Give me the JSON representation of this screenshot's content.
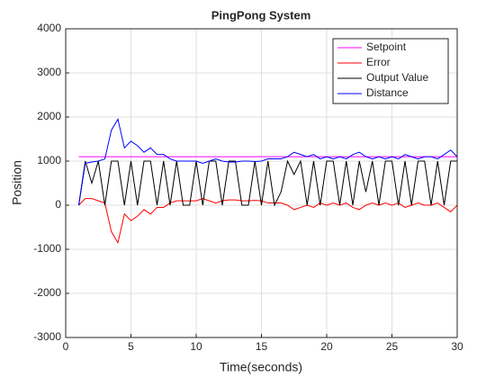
{
  "chart_data": {
    "type": "line",
    "title": "PingPong System",
    "x_label": "Time(seconds)",
    "y_label": "Position",
    "x": [
      1,
      1.5,
      2,
      2.5,
      3,
      3.5,
      4,
      4.5,
      5,
      5.5,
      6,
      6.5,
      7,
      7.5,
      8,
      8.5,
      9,
      9.5,
      10,
      10.5,
      11,
      11.5,
      12,
      12.5,
      13,
      13.5,
      14,
      14.5,
      15,
      15.5,
      16,
      16.5,
      17,
      17.5,
      18,
      18.5,
      19,
      19.5,
      20,
      20.5,
      21,
      21.5,
      22,
      22.5,
      23,
      23.5,
      24,
      24.5,
      25,
      25.5,
      26,
      26.5,
      27,
      27.5,
      28,
      28.5,
      29,
      29.5,
      30
    ],
    "series": [
      {
        "name": "Setpoint",
        "color": "#ff00ff",
        "values": [
          1100,
          1100,
          1100,
          1100,
          1100,
          1100,
          1100,
          1100,
          1100,
          1100,
          1100,
          1100,
          1100,
          1100,
          1100,
          1100,
          1100,
          1100,
          1100,
          1100,
          1100,
          1100,
          1100,
          1100,
          1100,
          1100,
          1100,
          1100,
          1100,
          1100,
          1100,
          1100,
          1100,
          1100,
          1100,
          1100,
          1100,
          1100,
          1100,
          1100,
          1100,
          1100,
          1100,
          1100,
          1100,
          1100,
          1100,
          1100,
          1100,
          1100,
          1100,
          1100,
          1100,
          1100,
          1100,
          1100,
          1100,
          1100,
          1100
        ]
      },
      {
        "name": "Error",
        "color": "#ff0000",
        "values": [
          0,
          150,
          150,
          100,
          50,
          -600,
          -850,
          -200,
          -350,
          -250,
          -100,
          -200,
          -50,
          -50,
          50,
          100,
          100,
          100,
          100,
          150,
          100,
          50,
          100,
          120,
          120,
          100,
          100,
          110,
          100,
          50,
          50,
          50,
          0,
          -100,
          -50,
          0,
          -50,
          50,
          0,
          50,
          0,
          50,
          -50,
          -100,
          0,
          50,
          0,
          50,
          0,
          50,
          -50,
          0,
          50,
          0,
          0,
          50,
          -50,
          -150,
          0
        ]
      },
      {
        "name": "Output Value",
        "color": "#000000",
        "values": [
          0,
          1000,
          500,
          1000,
          0,
          1000,
          1000,
          0,
          1000,
          0,
          1000,
          1000,
          0,
          1000,
          0,
          1000,
          0,
          0,
          1000,
          0,
          1000,
          1000,
          0,
          1000,
          1000,
          0,
          0,
          1000,
          0,
          1000,
          0,
          300,
          1000,
          700,
          1000,
          0,
          1000,
          0,
          1000,
          1000,
          0,
          1000,
          0,
          1000,
          300,
          1000,
          0,
          1000,
          1000,
          0,
          1000,
          0,
          1000,
          1000,
          0,
          1000,
          0,
          1000,
          1000
        ]
      },
      {
        "name": "Distance",
        "color": "#0000ff",
        "values": [
          0,
          950,
          980,
          1000,
          1050,
          1700,
          1950,
          1300,
          1450,
          1350,
          1200,
          1300,
          1150,
          1150,
          1050,
          1000,
          1000,
          1000,
          1000,
          950,
          1000,
          1050,
          1000,
          980,
          980,
          1000,
          1000,
          990,
          1000,
          1050,
          1050,
          1050,
          1100,
          1200,
          1150,
          1100,
          1150,
          1050,
          1100,
          1050,
          1100,
          1050,
          1150,
          1200,
          1100,
          1050,
          1100,
          1050,
          1100,
          1050,
          1150,
          1100,
          1050,
          1100,
          1100,
          1050,
          1150,
          1250,
          1100
        ]
      }
    ],
    "xlim": [
      0,
      30
    ],
    "xticks": [
      0,
      5,
      10,
      15,
      20,
      25,
      30
    ],
    "ylim": [
      -3000,
      4000
    ],
    "yticks": [
      -3000,
      -2000,
      -1000,
      0,
      1000,
      2000,
      3000,
      4000
    ],
    "grid": true,
    "legend_position": "upper right"
  }
}
